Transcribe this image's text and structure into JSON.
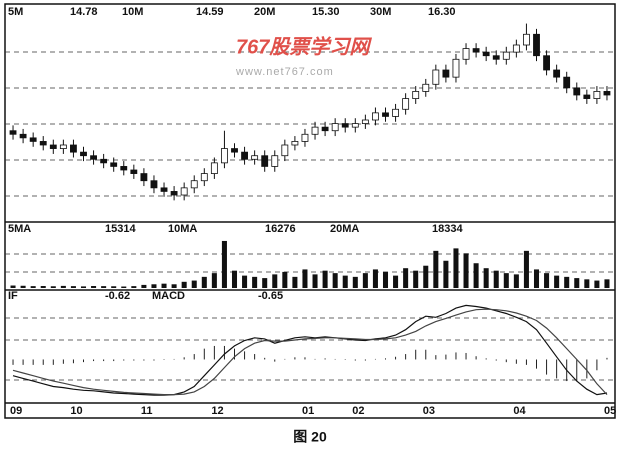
{
  "chart_data": [
    {
      "type": "candlestick",
      "header": [
        "5M",
        "14.78",
        "10M",
        "14.59",
        "20M",
        "15.30",
        "30M",
        "16.30"
      ],
      "watermark": [
        "767股票学习网",
        "www.net767.com"
      ],
      "categories": [
        "09",
        null,
        null,
        null,
        null,
        null,
        "10",
        null,
        null,
        null,
        null,
        null,
        null,
        "11",
        null,
        null,
        null,
        null,
        null,
        null,
        "12",
        null,
        null,
        null,
        null,
        null,
        null,
        null,
        null,
        "01",
        null,
        null,
        null,
        null,
        "02",
        null,
        null,
        null,
        null,
        null,
        null,
        "03",
        null,
        null,
        null,
        null,
        null,
        null,
        null,
        null,
        "04",
        null,
        null,
        null,
        null,
        null,
        null,
        null,
        null,
        "05"
      ],
      "open": [
        15.3,
        15.2,
        15.1,
        15.0,
        14.9,
        14.8,
        14.9,
        14.7,
        14.6,
        14.5,
        14.4,
        14.3,
        14.2,
        14.1,
        13.9,
        13.7,
        13.6,
        13.5,
        13.7,
        13.9,
        14.1,
        14.4,
        14.8,
        14.7,
        14.5,
        14.6,
        14.3,
        14.6,
        14.9,
        15.0,
        15.2,
        15.4,
        15.3,
        15.5,
        15.4,
        15.5,
        15.6,
        15.8,
        15.7,
        15.9,
        16.2,
        16.4,
        16.6,
        17.0,
        16.8,
        17.3,
        17.6,
        17.5,
        17.4,
        17.3,
        17.5,
        17.7,
        18.0,
        17.4,
        17.0,
        16.8,
        16.5,
        16.3,
        16.2,
        16.4
      ],
      "close": [
        15.2,
        15.1,
        15.0,
        14.9,
        14.8,
        14.9,
        14.7,
        14.6,
        14.5,
        14.4,
        14.3,
        14.2,
        14.1,
        13.9,
        13.7,
        13.6,
        13.5,
        13.7,
        13.9,
        14.1,
        14.4,
        14.8,
        14.7,
        14.5,
        14.6,
        14.3,
        14.6,
        14.9,
        15.0,
        15.2,
        15.4,
        15.3,
        15.5,
        15.4,
        15.5,
        15.6,
        15.8,
        15.7,
        15.9,
        16.2,
        16.4,
        16.6,
        17.0,
        16.8,
        17.3,
        17.6,
        17.5,
        17.4,
        17.3,
        17.5,
        17.7,
        18.0,
        17.4,
        17.0,
        16.8,
        16.5,
        16.3,
        16.2,
        16.4,
        16.3
      ],
      "high": [
        15.45,
        15.35,
        15.25,
        15.15,
        15.05,
        15.05,
        15.05,
        14.85,
        14.75,
        14.65,
        14.55,
        14.45,
        14.35,
        14.25,
        14.05,
        13.85,
        13.75,
        13.85,
        14.05,
        14.25,
        14.55,
        15.3,
        14.95,
        14.85,
        14.75,
        14.75,
        14.75,
        15.05,
        15.15,
        15.35,
        15.55,
        15.55,
        15.65,
        15.65,
        15.65,
        15.75,
        15.95,
        15.95,
        16.05,
        16.35,
        16.55,
        16.75,
        17.15,
        17.15,
        17.45,
        17.75,
        17.75,
        17.65,
        17.55,
        17.65,
        17.85,
        18.3,
        18.15,
        17.55,
        17.15,
        16.95,
        16.65,
        16.45,
        16.55,
        16.55
      ],
      "low": [
        15.05,
        14.95,
        14.85,
        14.75,
        14.65,
        14.65,
        14.55,
        14.45,
        14.35,
        14.25,
        14.15,
        14.05,
        13.95,
        13.75,
        13.55,
        13.45,
        13.35,
        13.35,
        13.55,
        13.75,
        13.95,
        14.25,
        14.55,
        14.35,
        14.35,
        14.15,
        14.15,
        14.45,
        14.75,
        14.85,
        15.05,
        15.15,
        15.15,
        15.25,
        15.25,
        15.35,
        15.45,
        15.55,
        15.55,
        15.75,
        16.05,
        16.25,
        16.45,
        16.65,
        16.65,
        17.15,
        17.35,
        17.25,
        17.15,
        17.15,
        17.35,
        17.55,
        17.25,
        16.85,
        16.65,
        16.35,
        16.15,
        16.05,
        16.05,
        16.15
      ],
      "ylim": [
        12.8,
        18.4
      ],
      "color": "#111111"
    },
    {
      "type": "bar",
      "header": [
        "5MA",
        "15314",
        "10MA",
        "16276",
        "20MA",
        "18334"
      ],
      "values": [
        2000,
        1800,
        1500,
        1600,
        1400,
        1700,
        1500,
        1300,
        1600,
        1500,
        1400,
        1200,
        1500,
        2500,
        3000,
        3500,
        3000,
        5000,
        6000,
        9000,
        12000,
        38000,
        14000,
        10000,
        9000,
        8000,
        11000,
        13000,
        9000,
        15000,
        11000,
        14000,
        12000,
        10000,
        9000,
        12000,
        15000,
        13000,
        10000,
        16000,
        14000,
        18000,
        30000,
        22000,
        32000,
        28000,
        20000,
        16000,
        14000,
        12000,
        11000,
        30000,
        15000,
        12000,
        10000,
        9000,
        8000,
        7000,
        6000,
        7000
      ],
      "ylim": [
        0,
        42000
      ],
      "color": "#111111"
    },
    {
      "type": "macd",
      "header": [
        "IF",
        "-0.62",
        "MACD",
        "-0.65"
      ],
      "series": [
        {
          "values": [
            -0.3,
            -0.35,
            -0.4,
            -0.45,
            -0.5,
            -0.52,
            -0.55,
            -0.57,
            -0.58,
            -0.6,
            -0.62,
            -0.63,
            -0.64,
            -0.65,
            -0.66,
            -0.66,
            -0.65,
            -0.6,
            -0.5,
            -0.3,
            -0.1,
            0.1,
            0.25,
            0.35,
            0.4,
            0.38,
            0.3,
            0.35,
            0.4,
            0.42,
            0.4,
            0.42,
            0.4,
            0.38,
            0.36,
            0.35,
            0.38,
            0.4,
            0.45,
            0.55,
            0.7,
            0.8,
            0.78,
            0.85,
            0.95,
            1.0,
            0.98,
            0.95,
            0.9,
            0.85,
            0.78,
            0.7,
            0.55,
            0.3,
            0.05,
            -0.2,
            -0.4,
            -0.55,
            -0.65,
            -0.62
          ],
          "color": "#111111"
        },
        {
          "values": [
            -0.2,
            -0.25,
            -0.3,
            -0.35,
            -0.4,
            -0.44,
            -0.48,
            -0.52,
            -0.55,
            -0.57,
            -0.59,
            -0.61,
            -0.62,
            -0.63,
            -0.64,
            -0.65,
            -0.65,
            -0.64,
            -0.6,
            -0.5,
            -0.35,
            -0.15,
            0.05,
            0.2,
            0.3,
            0.35,
            0.34,
            0.34,
            0.36,
            0.38,
            0.39,
            0.4,
            0.4,
            0.39,
            0.38,
            0.37,
            0.37,
            0.38,
            0.4,
            0.45,
            0.52,
            0.62,
            0.7,
            0.76,
            0.82,
            0.88,
            0.92,
            0.93,
            0.92,
            0.9,
            0.86,
            0.8,
            0.72,
            0.58,
            0.4,
            0.2,
            0.0,
            -0.2,
            -0.45,
            -0.65
          ],
          "color": "#444444"
        }
      ],
      "histogram": [
        -0.1,
        -0.1,
        -0.1,
        -0.1,
        -0.1,
        -0.08,
        -0.07,
        -0.05,
        -0.03,
        -0.03,
        -0.03,
        -0.02,
        -0.02,
        -0.02,
        -0.02,
        -0.01,
        0.0,
        0.04,
        0.1,
        0.2,
        0.25,
        0.25,
        0.2,
        0.15,
        0.1,
        0.03,
        -0.04,
        0.01,
        0.04,
        0.04,
        0.01,
        0.02,
        0.0,
        -0.01,
        -0.02,
        -0.02,
        0.01,
        0.02,
        0.05,
        0.1,
        0.18,
        0.18,
        0.08,
        0.09,
        0.13,
        0.12,
        0.06,
        0.02,
        -0.02,
        -0.05,
        -0.08,
        -0.1,
        -0.17,
        -0.28,
        -0.35,
        -0.4,
        -0.4,
        -0.35,
        -0.2,
        0.03
      ],
      "ylim": [
        -0.75,
        1.1
      ]
    }
  ],
  "caption": "图 20"
}
